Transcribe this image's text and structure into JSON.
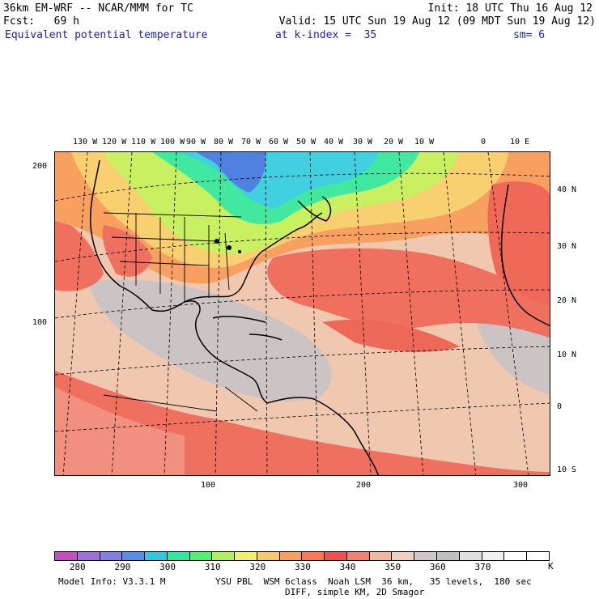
{
  "header": {
    "line1_left": "36km EM-WRF -- NCAR/MMM for TC",
    "line1_right": "Init: 18 UTC Thu 16 Aug 12",
    "line2_left": "Fcst:   69 h",
    "line2_right": "Valid: 15 UTC Sun 19 Aug 12 (09 MDT Sun 19 Aug 12)",
    "field_title": "Equivalent potential temperature",
    "level": "at k-index =  35",
    "smoothing": "sm= 6"
  },
  "axes": {
    "top_lon_labels": [
      "130 W",
      "120 W",
      "110 W",
      "100 W",
      "90 W",
      "80 W",
      "70 W",
      "60 W",
      "50 W",
      "40 W",
      "30 W",
      "20 W",
      "10 W",
      "0",
      "10 E"
    ],
    "right_lat_labels": [
      "40 N",
      "30 N",
      "20 N",
      "10 N",
      "0",
      "10 S"
    ],
    "left_grid_labels": [
      "200",
      "100"
    ],
    "bottom_grid_labels": [
      "100",
      "200",
      "300"
    ]
  },
  "colorbar": {
    "colors": [
      "#c050c0",
      "#a070d8",
      "#8080e0",
      "#5890e8",
      "#30c8e0",
      "#30e8a0",
      "#50f070",
      "#b0f060",
      "#f0f070",
      "#f8c870",
      "#f8a060",
      "#f87858",
      "#f05050",
      "#f08070",
      "#f0b8a0",
      "#f0d0c0",
      "#d0c8c8",
      "#c0c0c0",
      "#e0e0e0",
      "#f0f0f0",
      "#ffffff",
      "#ffffff"
    ],
    "labels": [
      "280",
      "290",
      "300",
      "310",
      "320",
      "330",
      "340",
      "350",
      "360",
      "370"
    ],
    "unit": "K"
  },
  "footer": {
    "line1_left": "Model Info: V3.3.1 M",
    "line1_right": "YSU PBL  WSM 6class  Noah LSM  36 km,   35 levels,  180 sec",
    "line2": "DIFF, simple KM, 2D Smagor"
  }
}
